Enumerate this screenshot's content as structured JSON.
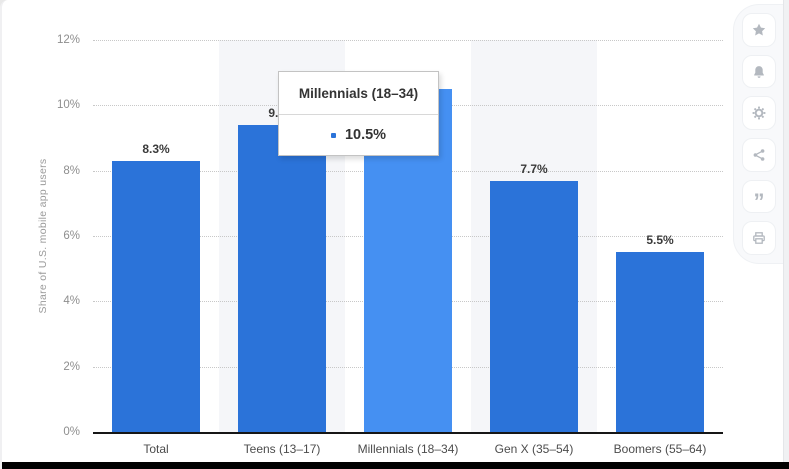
{
  "chart_data": {
    "type": "bar",
    "categories": [
      "Total",
      "Teens (13–17)",
      "Millennials (18–34)",
      "Gen X (35–54)",
      "Boomers (55–64)"
    ],
    "values": [
      8.3,
      9.4,
      10.5,
      7.7,
      5.5
    ],
    "bar_labels": [
      "8.3%",
      "9.4%",
      null,
      "7.7%",
      "5.5%"
    ],
    "ylabel": "Share of U.S. mobile app users",
    "ylim": [
      0,
      12
    ],
    "yticks": [
      "12%",
      "10%",
      "8%",
      "6%",
      "4%",
      "2%",
      "0%"
    ],
    "grid": "horizontal dotted, on",
    "legend": "none",
    "highlighted_index": 2,
    "banded_columns": [
      1,
      3
    ],
    "tooltip": {
      "title": "Millennials (18–34)",
      "value": "10.5%"
    },
    "colors": {
      "bar": "#2b73d9",
      "bar_highlight": "#4590f2",
      "column_band": "#f5f6f9",
      "gridline": "#c8c8c8",
      "axis": "#161616"
    }
  },
  "ui": {
    "sidebar": {
      "buttons": [
        {
          "name": "favorite",
          "icon": "star-icon"
        },
        {
          "name": "alerts",
          "icon": "bell-icon"
        },
        {
          "name": "settings",
          "icon": "gear-icon"
        },
        {
          "name": "share",
          "icon": "share-icon"
        },
        {
          "name": "cite",
          "icon": "quote-icon"
        },
        {
          "name": "print",
          "icon": "print-icon"
        }
      ],
      "quote_glyph": "”"
    }
  }
}
